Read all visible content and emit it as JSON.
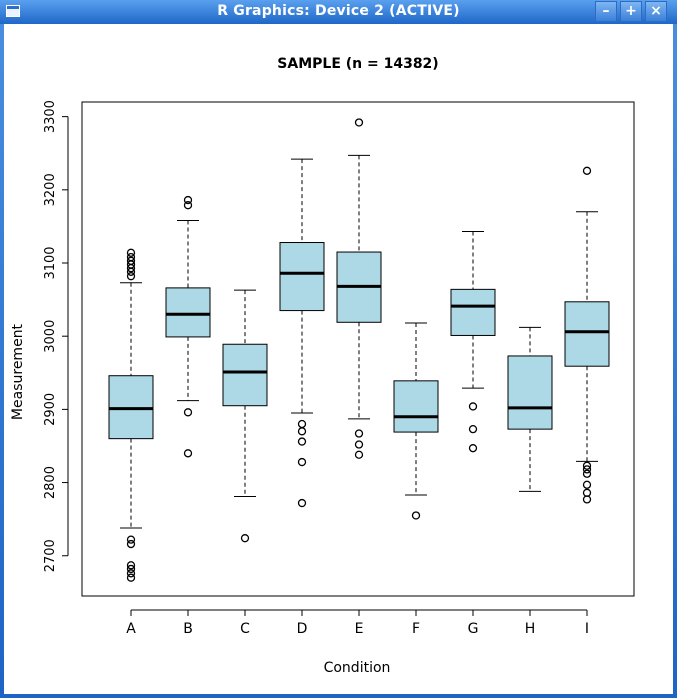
{
  "window": {
    "title": "R Graphics: Device 2 (ACTIVE)",
    "buttons": {
      "minimize": "–",
      "maximize": "+",
      "close": "×"
    }
  },
  "chart_data": {
    "type": "boxplot",
    "title": "SAMPLE (n = 14382)",
    "xlabel": "Condition",
    "ylabel": "Measurement",
    "ylim": [
      2645,
      3320
    ],
    "yticks": [
      2700,
      2800,
      2900,
      3000,
      3100,
      3200,
      3300
    ],
    "box_color": "#add8e6",
    "categories": [
      "A",
      "B",
      "C",
      "D",
      "E",
      "F",
      "G",
      "H",
      "I"
    ],
    "boxes": [
      {
        "name": "A",
        "whisker_low": 2738,
        "q1": 2860,
        "median": 2901,
        "q3": 2946,
        "whisker_high": 3073,
        "outliers": [
          2670,
          2676,
          2682,
          2687,
          2716,
          2722,
          3082,
          3088,
          3093,
          3098,
          3103,
          3108,
          3114
        ]
      },
      {
        "name": "B",
        "whisker_low": 2912,
        "q1": 2999,
        "median": 3030,
        "q3": 3066,
        "whisker_high": 3158,
        "outliers": [
          2840,
          2896,
          3179,
          3186
        ]
      },
      {
        "name": "C",
        "whisker_low": 2781,
        "q1": 2905,
        "median": 2951,
        "q3": 2989,
        "whisker_high": 3063,
        "outliers": [
          2724
        ]
      },
      {
        "name": "D",
        "whisker_low": 2895,
        "q1": 3035,
        "median": 3086,
        "q3": 3128,
        "whisker_high": 3242,
        "outliers": [
          2772,
          2828,
          2856,
          2870,
          2880
        ]
      },
      {
        "name": "E",
        "whisker_low": 2887,
        "q1": 3019,
        "median": 3068,
        "q3": 3115,
        "whisker_high": 3247,
        "outliers": [
          2838,
          2852,
          2867,
          3292
        ]
      },
      {
        "name": "F",
        "whisker_low": 2783,
        "q1": 2869,
        "median": 2890,
        "q3": 2939,
        "whisker_high": 3018,
        "outliers": [
          2755
        ]
      },
      {
        "name": "G",
        "whisker_low": 2929,
        "q1": 3001,
        "median": 3041,
        "q3": 3064,
        "whisker_high": 3143,
        "outliers": [
          2847,
          2873,
          2904
        ]
      },
      {
        "name": "H",
        "whisker_low": 2788,
        "q1": 2873,
        "median": 2902,
        "q3": 2973,
        "whisker_high": 3012,
        "outliers": []
      },
      {
        "name": "I",
        "whisker_low": 2829,
        "q1": 2959,
        "median": 3006,
        "q3": 3047,
        "whisker_high": 3170,
        "outliers": [
          2777,
          2786,
          2797,
          2812,
          2818,
          2823,
          3226
        ]
      }
    ]
  }
}
